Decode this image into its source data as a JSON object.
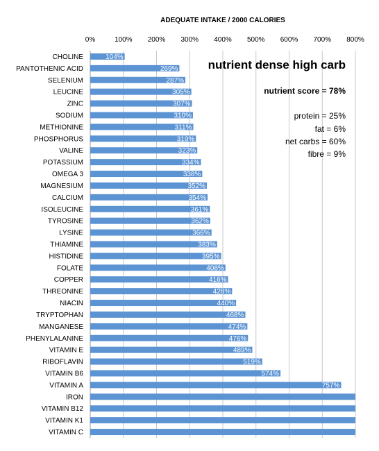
{
  "chart_data": {
    "type": "bar",
    "orientation": "horizontal",
    "title": "ADEQUATE INTAKE / 2000 CALORIES",
    "xlim": [
      0,
      800
    ],
    "x_tick_labels": [
      "0%",
      "100%",
      "200%",
      "300%",
      "400%",
      "500%",
      "600%",
      "700%",
      "800%"
    ],
    "x_tick_values": [
      0,
      100,
      200,
      300,
      400,
      500,
      600,
      700,
      800
    ],
    "axis_position": "top",
    "grid": true,
    "legend": "none",
    "bar_color": "#5b93d3",
    "categories": [
      "CHOLINE",
      "PANTOTHENIC ACID",
      "SELENIUM",
      "LEUCINE",
      "ZINC",
      "SODIUM",
      "METHIONINE",
      "PHOSPHORUS",
      "VALINE",
      "POTASSIUM",
      "OMEGA 3",
      "MAGNESIUM",
      "CALCIUM",
      "ISOLEUCINE",
      "TYROSINE",
      "LYSINE",
      "THIAMINE",
      "HISTIDINE",
      "FOLATE",
      "COPPER",
      "THREONINE",
      "NIACIN",
      "TRYPTOPHAN",
      "MANGANESE",
      "PHENYLALANINE",
      "VITAMIN E",
      "RIBOFLAVIN",
      "VITAMIN B6",
      "VITAMIN A",
      "IRON",
      "VITAMIN B12",
      "VITAMIN K1",
      "VITAMIN C"
    ],
    "values": [
      104,
      269,
      287,
      305,
      307,
      310,
      311,
      319,
      323,
      334,
      338,
      352,
      354,
      361,
      362,
      366,
      383,
      395,
      408,
      416,
      428,
      440,
      468,
      474,
      476,
      489,
      519,
      574,
      757,
      800,
      800,
      800,
      800
    ],
    "data_labels": [
      "104%",
      "269%",
      "287%",
      "305%",
      "307%",
      "310%",
      "311%",
      "319%",
      "323%",
      "334%",
      "338%",
      "352%",
      "354%",
      "361%",
      "362%",
      "366%",
      "383%",
      "395%",
      "408%",
      "416%",
      "428%",
      "440%",
      "468%",
      "474%",
      "476%",
      "489%",
      "519%",
      "574%",
      "757%",
      "",
      "",
      "",
      ""
    ]
  },
  "annotations": {
    "heading": "nutrient dense high carb",
    "score": "nutrient score = 78%",
    "macros": [
      "protein = 25%",
      "fat = 6%",
      "net carbs = 60%",
      "fibre = 9%"
    ]
  }
}
